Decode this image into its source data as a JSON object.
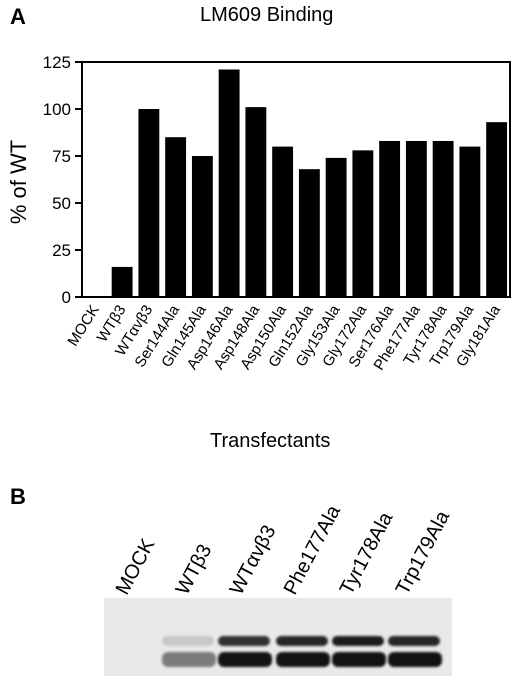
{
  "panel_a": {
    "letter": "A"
  },
  "panel_b": {
    "letter": "B"
  },
  "chart_data": {
    "type": "bar",
    "title": "LM609 Binding",
    "xlabel": "Transfectants",
    "ylabel": "% of WT",
    "ylim": [
      0,
      125
    ],
    "yticks": [
      0,
      25,
      50,
      75,
      100,
      125
    ],
    "categories": [
      "MOCK",
      "WTβ3",
      "WTαvβ3",
      "Ser144Ala",
      "Gln145Ala",
      "Asp146Ala",
      "Asp148Ala",
      "Asp150Ala",
      "Gln152Ala",
      "Gly153Ala",
      "Gly172Ala",
      "Ser176Ala",
      "Phe177Ala",
      "Tyr178Ala",
      "Trp179Ala",
      "Gly181Ala"
    ],
    "values": [
      0,
      16,
      100,
      85,
      75,
      121,
      101,
      80,
      68,
      74,
      78,
      83,
      83,
      83,
      80,
      93
    ],
    "bar_color": "#000000",
    "grid": false
  },
  "blot": {
    "lanes": [
      "MOCK",
      "WTβ3",
      "WTαvβ3",
      "Phe177Ala",
      "Tyr178Ala",
      "Trp179Ala"
    ],
    "band_upper": [
      0,
      0.15,
      0.85,
      0.9,
      0.95,
      0.9
    ],
    "band_lower": [
      0,
      0.5,
      1,
      1,
      1,
      1
    ]
  }
}
